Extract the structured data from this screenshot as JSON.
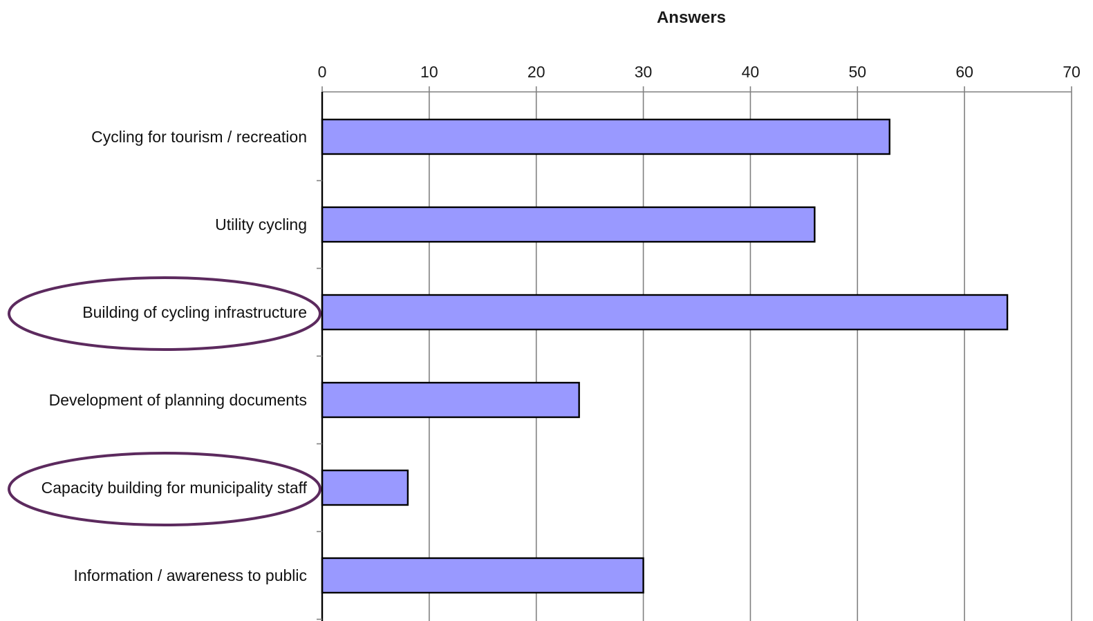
{
  "chart_data": {
    "type": "bar",
    "orientation": "horizontal",
    "title": "Answers",
    "xlabel": "",
    "ylabel": "",
    "xlim": [
      0,
      70
    ],
    "xticks": [
      "0",
      "10",
      "20",
      "30",
      "40",
      "50",
      "60",
      "70"
    ],
    "x_axis_position": "top",
    "grid": true,
    "categories": [
      "Cycling for tourism / recreation",
      "Utility cycling",
      "Building of cycling infrastructure",
      "Development of planning documents",
      "Capacity building for municipality staff",
      "Information / awareness to public"
    ],
    "values": [
      53,
      46,
      64,
      24,
      8,
      30
    ],
    "highlighted_categories": [
      "Building of cycling infrastructure",
      "Capacity building for municipality staff"
    ],
    "colors": {
      "bar_fill": "#9999ff",
      "bar_stroke": "#000000",
      "grid": "#808080",
      "highlight_ellipse": "#5c2a5e"
    }
  }
}
